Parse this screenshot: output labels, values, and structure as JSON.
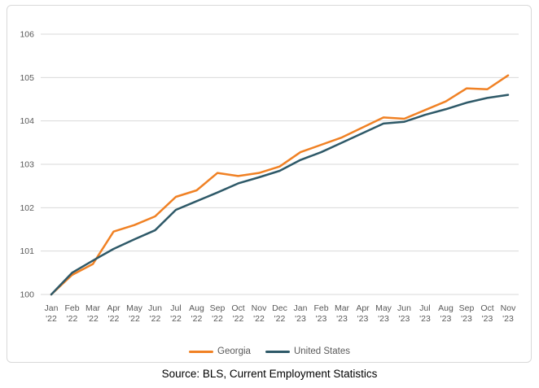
{
  "page": {
    "source_caption": "Source: BLS, Current Employment Statistics"
  },
  "chart_data": {
    "type": "line",
    "title": "",
    "xlabel": "",
    "ylabel": "",
    "grid": true,
    "legend_position": "bottom",
    "ylim": [
      100,
      106
    ],
    "yticks": [
      100,
      101,
      102,
      103,
      104,
      105,
      106
    ],
    "categories": [
      "Jan '22",
      "Feb '22",
      "Mar '22",
      "Apr '22",
      "May '22",
      "Jun '22",
      "Jul '22",
      "Aug '22",
      "Sep '22",
      "Oct '22",
      "Nov '22",
      "Dec '22",
      "Jan '23",
      "Feb '23",
      "Mar '23",
      "Apr '23",
      "May '23",
      "Jun '23",
      "Jul '23",
      "Aug '23",
      "Sep '23",
      "Oct '23",
      "Nov '23"
    ],
    "series": [
      {
        "name": "Georgia",
        "color": "#F08124",
        "values": [
          100,
          100.45,
          100.7,
          101.45,
          101.6,
          101.8,
          102.25,
          102.4,
          102.8,
          102.73,
          102.8,
          102.95,
          103.28,
          103.45,
          103.62,
          103.85,
          104.08,
          104.05,
          104.25,
          104.45,
          104.75,
          104.73,
          105.05
        ]
      },
      {
        "name": "United States",
        "color": "#2E5968",
        "values": [
          100,
          100.5,
          100.78,
          101.05,
          101.27,
          101.48,
          101.95,
          102.15,
          102.35,
          102.56,
          102.7,
          102.85,
          103.1,
          103.28,
          103.5,
          103.72,
          103.94,
          103.98,
          104.14,
          104.27,
          104.42,
          104.53,
          104.6
        ]
      }
    ],
    "style": {
      "gridline_color": "#d9d9d9",
      "tick_label_color": "#595959",
      "frame_border_color": "#d9d9d9"
    }
  }
}
